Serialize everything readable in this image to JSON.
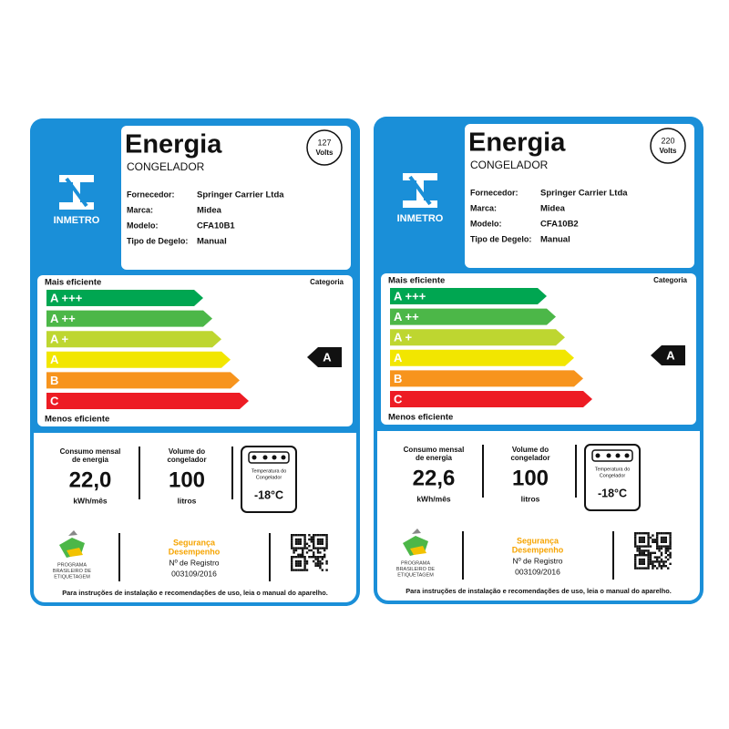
{
  "labels": [
    {
      "title": "Energia",
      "product": "CONGELADOR",
      "voltage": {
        "value": "127",
        "unit": "Volts"
      },
      "logo": "INMETRO",
      "fields": [
        {
          "label": "Fornecedor:",
          "value": "Springer Carrier Ltda"
        },
        {
          "label": "Marca:",
          "value": "Midea"
        },
        {
          "label": "Modelo:",
          "value": "CFA10B1"
        },
        {
          "label": "Tipo de Degelo:",
          "value": "Manual"
        }
      ],
      "efficiency": {
        "top": "Mais eficiente",
        "bottom": "Menos eficiente",
        "category_label": "Categoria",
        "classes": [
          "A +++",
          "A ++",
          "A +",
          "A",
          "B",
          "C"
        ],
        "rating": "A"
      },
      "consumption": {
        "label": [
          "Consumo mensal",
          "de energia"
        ],
        "value": "22,0",
        "unit": "kWh/mês"
      },
      "volume": {
        "label": [
          "Volume do",
          "congelador"
        ],
        "value": "100",
        "unit": "litros"
      },
      "temperature": {
        "label": [
          "Temperatura do",
          "Congelador"
        ],
        "value": "-18°C"
      },
      "program": [
        "PROGRAMA",
        "BRASILEIRO DE",
        "ETIQUETAGEM"
      ],
      "certification": {
        "lines": [
          "Segurança",
          "Desempenho"
        ],
        "registry_label": "Nº de Registro",
        "registry": "003109/2016"
      },
      "footer": "Para instruções de instalação e recomendações de uso, leia o manual do aparelho."
    },
    {
      "title": "Energia",
      "product": "CONGELADOR",
      "voltage": {
        "value": "220",
        "unit": "Volts"
      },
      "logo": "INMETRO",
      "fields": [
        {
          "label": "Fornecedor:",
          "value": "Springer Carrier Ltda"
        },
        {
          "label": "Marca:",
          "value": "Midea"
        },
        {
          "label": "Modelo:",
          "value": "CFA10B2"
        },
        {
          "label": "Tipo de Degelo:",
          "value": "Manual"
        }
      ],
      "efficiency": {
        "top": "Mais eficiente",
        "bottom": "Menos eficiente",
        "category_label": "Categoria",
        "classes": [
          "A +++",
          "A ++",
          "A +",
          "A",
          "B",
          "C"
        ],
        "rating": "A"
      },
      "consumption": {
        "label": [
          "Consumo mensal",
          "de energia"
        ],
        "value": "22,6",
        "unit": "kWh/mês"
      },
      "volume": {
        "label": [
          "Volume do",
          "congelador"
        ],
        "value": "100",
        "unit": "litros"
      },
      "temperature": {
        "label": [
          "Temperatura do",
          "Congelador"
        ],
        "value": "-18°C"
      },
      "program": [
        "PROGRAMA",
        "BRASILEIRO DE",
        "ETIQUETAGEM"
      ],
      "certification": {
        "lines": [
          "Segurança",
          "Desempenho"
        ],
        "registry_label": "Nº de Registro",
        "registry": "003109/2016"
      },
      "footer": "Para instruções de instalação e recomendações de uso, leia o manual do aparelho."
    }
  ]
}
